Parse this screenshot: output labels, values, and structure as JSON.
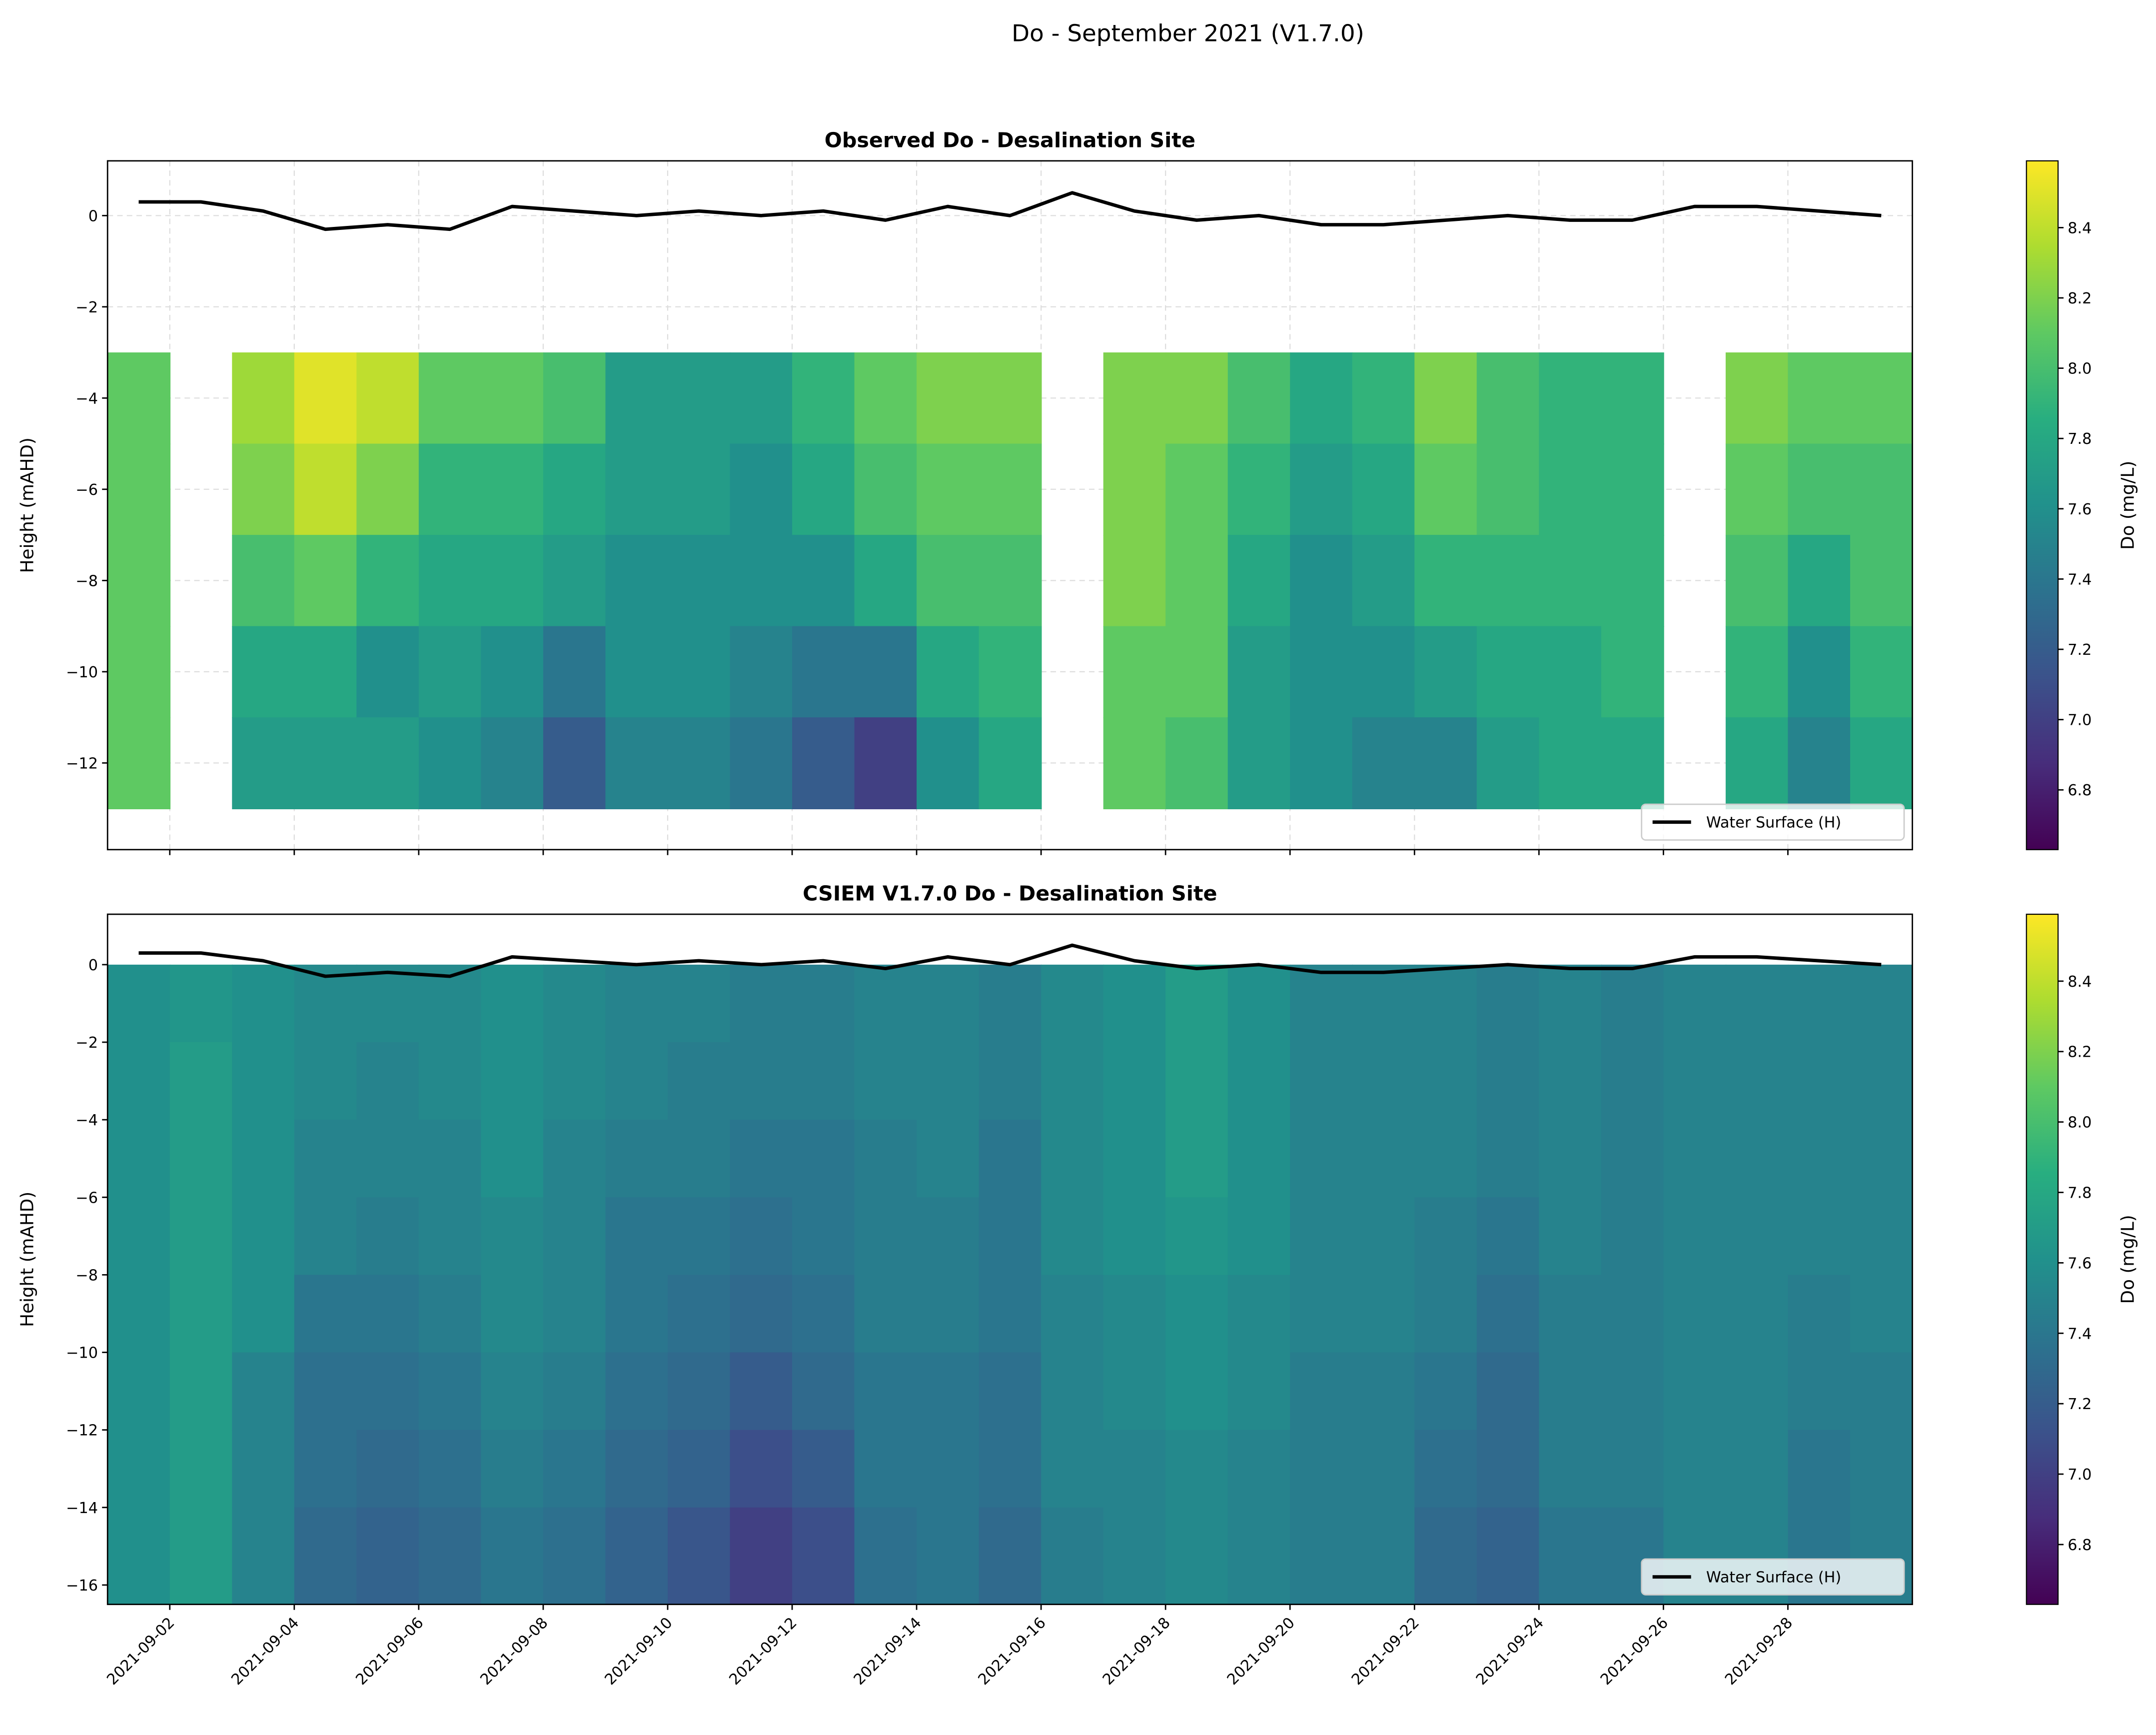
{
  "title": "Do - September 2021 (V1.7.0)",
  "chart_data": [
    {
      "type": "heatmap",
      "title": "Observed Do - Desalination Site",
      "ylabel": "Height (mAHD)",
      "grid": true,
      "legend": "lower right",
      "xlim": [
        "2021-09-01",
        "2021-09-30"
      ],
      "xticks": [
        "2021-09-02",
        "2021-09-04",
        "2021-09-06",
        "2021-09-08",
        "2021-09-10",
        "2021-09-12",
        "2021-09-14",
        "2021-09-16",
        "2021-09-18",
        "2021-09-20",
        "2021-09-22",
        "2021-09-24",
        "2021-09-26",
        "2021-09-28"
      ],
      "ylim": [
        -13.9,
        1.2
      ],
      "yticks": [
        {
          "value": -12,
          "label": "−12"
        },
        {
          "value": -10,
          "label": "−10"
        },
        {
          "value": -8,
          "label": "−8"
        },
        {
          "value": -6,
          "label": "−6"
        },
        {
          "value": -4,
          "label": "−4"
        },
        {
          "value": -2,
          "label": "−2"
        },
        0
      ],
      "x": [
        "2021-09-01",
        "2021-09-02",
        "2021-09-03",
        "2021-09-04",
        "2021-09-05",
        "2021-09-06",
        "2021-09-07",
        "2021-09-08",
        "2021-09-09",
        "2021-09-10",
        "2021-09-11",
        "2021-09-12",
        "2021-09-13",
        "2021-09-14",
        "2021-09-15",
        "2021-09-16",
        "2021-09-17",
        "2021-09-18",
        "2021-09-19",
        "2021-09-20",
        "2021-09-21",
        "2021-09-22",
        "2021-09-23",
        "2021-09-24",
        "2021-09-25",
        "2021-09-26",
        "2021-09-27",
        "2021-09-28",
        "2021-09-29"
      ],
      "depth_bins": [
        -3,
        -5,
        -7,
        -9,
        -11,
        -13
      ],
      "values": [
        [
          8.1,
          8.1,
          8.1,
          8.1,
          8.1
        ],
        null,
        [
          8.3,
          8.2,
          8.0,
          7.8,
          7.7
        ],
        [
          8.5,
          8.4,
          8.1,
          7.8,
          7.7
        ],
        [
          8.4,
          8.2,
          7.9,
          7.6,
          7.7
        ],
        [
          8.1,
          7.9,
          7.8,
          7.7,
          7.6
        ],
        [
          8.1,
          7.9,
          7.8,
          7.6,
          7.5
        ],
        [
          8.0,
          7.8,
          7.7,
          7.4,
          7.2
        ],
        [
          7.7,
          7.7,
          7.6,
          7.6,
          7.5
        ],
        [
          7.7,
          7.7,
          7.6,
          7.6,
          7.5
        ],
        [
          7.7,
          7.6,
          7.6,
          7.5,
          7.4
        ],
        [
          7.9,
          7.8,
          7.6,
          7.4,
          7.2
        ],
        [
          8.1,
          8.0,
          7.8,
          7.4,
          7.0
        ],
        [
          8.2,
          8.1,
          8.0,
          7.8,
          7.6
        ],
        [
          8.2,
          8.1,
          8.0,
          7.9,
          7.8
        ],
        null,
        [
          8.2,
          8.2,
          8.2,
          8.1,
          8.1
        ],
        [
          8.2,
          8.1,
          8.1,
          8.1,
          8.0
        ],
        [
          8.0,
          7.9,
          7.8,
          7.7,
          7.7
        ],
        [
          7.8,
          7.7,
          7.6,
          7.6,
          7.6
        ],
        [
          7.9,
          7.8,
          7.7,
          7.6,
          7.5
        ],
        [
          8.2,
          8.1,
          7.9,
          7.7,
          7.5
        ],
        [
          8.0,
          8.0,
          7.9,
          7.8,
          7.7
        ],
        [
          7.9,
          7.9,
          7.9,
          7.8,
          7.8
        ],
        [
          7.9,
          7.9,
          7.9,
          7.9,
          7.8
        ],
        null,
        [
          8.2,
          8.1,
          8.0,
          7.9,
          7.8
        ],
        [
          8.1,
          8.0,
          7.8,
          7.6,
          7.5
        ],
        [
          8.1,
          8.0,
          8.0,
          7.9,
          7.8
        ]
      ],
      "line": {
        "name": "Water Surface (H)",
        "color": "#000000",
        "values": [
          0.3,
          0.3,
          0.1,
          -0.3,
          -0.2,
          -0.3,
          0.2,
          0.1,
          0.0,
          0.1,
          0.0,
          0.1,
          -0.1,
          0.2,
          0.0,
          0.5,
          0.1,
          -0.1,
          0.0,
          -0.2,
          -0.2,
          -0.1,
          0.0,
          -0.1,
          -0.1,
          0.2,
          0.2,
          0.1,
          0.0
        ]
      },
      "colorbar": {
        "label": "Do (mg/L)",
        "colormap": "viridis",
        "lim": [
          6.63,
          8.59
        ],
        "ticks": [
          6.8,
          {
            "value": 7,
            "label": "7.0"
          },
          7.2,
          7.4,
          7.6,
          7.8,
          {
            "value": 8,
            "label": "8.0"
          },
          8.2,
          8.4
        ]
      }
    },
    {
      "type": "heatmap",
      "title": "CSIEM V1.7.0 Do - Desalination Site",
      "ylabel": "Height (mAHD)",
      "grid": false,
      "legend": "lower right",
      "xlim": [
        "2021-09-01",
        "2021-09-30"
      ],
      "xticks": [
        "2021-09-02",
        "2021-09-04",
        "2021-09-06",
        "2021-09-08",
        "2021-09-10",
        "2021-09-12",
        "2021-09-14",
        "2021-09-16",
        "2021-09-18",
        "2021-09-20",
        "2021-09-22",
        "2021-09-24",
        "2021-09-26",
        "2021-09-28"
      ],
      "ylim": [
        -16.5,
        1.3
      ],
      "yticks": [
        {
          "value": -16,
          "label": "−16"
        },
        {
          "value": -14,
          "label": "−14"
        },
        {
          "value": -12,
          "label": "−12"
        },
        {
          "value": -10,
          "label": "−10"
        },
        {
          "value": -8,
          "label": "−8"
        },
        {
          "value": -6,
          "label": "−6"
        },
        {
          "value": -4,
          "label": "−4"
        },
        {
          "value": -2,
          "label": "−2"
        },
        0
      ],
      "x": [
        "2021-09-01",
        "2021-09-02",
        "2021-09-03",
        "2021-09-04",
        "2021-09-05",
        "2021-09-06",
        "2021-09-07",
        "2021-09-08",
        "2021-09-09",
        "2021-09-10",
        "2021-09-11",
        "2021-09-12",
        "2021-09-13",
        "2021-09-14",
        "2021-09-15",
        "2021-09-16",
        "2021-09-17",
        "2021-09-18",
        "2021-09-19",
        "2021-09-20",
        "2021-09-21",
        "2021-09-22",
        "2021-09-23",
        "2021-09-24",
        "2021-09-25",
        "2021-09-26",
        "2021-09-27",
        "2021-09-28",
        "2021-09-29"
      ],
      "depth_bins": [
        0,
        -2,
        -4,
        -6,
        -8,
        -10,
        -12,
        -14,
        -16.5
      ],
      "values": [
        [
          7.6,
          7.6,
          7.6,
          7.6,
          7.6,
          7.6,
          7.6,
          7.6
        ],
        [
          7.65,
          7.7,
          7.7,
          7.7,
          7.7,
          7.7,
          7.7,
          7.7
        ],
        [
          7.6,
          7.6,
          7.6,
          7.6,
          7.6,
          7.5,
          7.5,
          7.5
        ],
        [
          7.55,
          7.55,
          7.5,
          7.5,
          7.4,
          7.35,
          7.35,
          7.3
        ],
        [
          7.55,
          7.5,
          7.5,
          7.45,
          7.4,
          7.35,
          7.3,
          7.25
        ],
        [
          7.55,
          7.55,
          7.5,
          7.5,
          7.45,
          7.4,
          7.35,
          7.3
        ],
        [
          7.6,
          7.6,
          7.6,
          7.55,
          7.55,
          7.5,
          7.45,
          7.4
        ],
        [
          7.55,
          7.55,
          7.5,
          7.5,
          7.5,
          7.45,
          7.4,
          7.35
        ],
        [
          7.5,
          7.5,
          7.45,
          7.4,
          7.4,
          7.35,
          7.3,
          7.25
        ],
        [
          7.5,
          7.45,
          7.45,
          7.4,
          7.35,
          7.3,
          7.25,
          7.15
        ],
        [
          7.45,
          7.45,
          7.4,
          7.35,
          7.3,
          7.2,
          7.1,
          7.0
        ],
        [
          7.45,
          7.45,
          7.4,
          7.4,
          7.35,
          7.3,
          7.2,
          7.1
        ],
        [
          7.5,
          7.5,
          7.45,
          7.45,
          7.45,
          7.4,
          7.4,
          7.35
        ],
        [
          7.5,
          7.5,
          7.5,
          7.45,
          7.45,
          7.4,
          7.4,
          7.4
        ],
        [
          7.45,
          7.45,
          7.4,
          7.4,
          7.4,
          7.35,
          7.35,
          7.3
        ],
        [
          7.55,
          7.55,
          7.55,
          7.55,
          7.5,
          7.5,
          7.5,
          7.45
        ],
        [
          7.6,
          7.6,
          7.6,
          7.6,
          7.55,
          7.55,
          7.5,
          7.5
        ],
        [
          7.7,
          7.7,
          7.7,
          7.65,
          7.6,
          7.6,
          7.55,
          7.55
        ],
        [
          7.6,
          7.6,
          7.6,
          7.6,
          7.55,
          7.55,
          7.5,
          7.5
        ],
        [
          7.5,
          7.5,
          7.5,
          7.5,
          7.5,
          7.45,
          7.45,
          7.45
        ],
        [
          7.5,
          7.5,
          7.5,
          7.5,
          7.5,
          7.45,
          7.45,
          7.45
        ],
        [
          7.5,
          7.5,
          7.5,
          7.45,
          7.45,
          7.4,
          7.35,
          7.3
        ],
        [
          7.45,
          7.45,
          7.45,
          7.4,
          7.35,
          7.3,
          7.3,
          7.25
        ],
        [
          7.5,
          7.5,
          7.5,
          7.5,
          7.45,
          7.45,
          7.45,
          7.4
        ],
        [
          7.45,
          7.45,
          7.45,
          7.45,
          7.45,
          7.45,
          7.45,
          7.4
        ],
        [
          7.5,
          7.5,
          7.5,
          7.5,
          7.5,
          7.5,
          7.5,
          7.5
        ],
        [
          7.5,
          7.5,
          7.5,
          7.5,
          7.5,
          7.5,
          7.5,
          7.5
        ],
        [
          7.5,
          7.5,
          7.5,
          7.5,
          7.45,
          7.45,
          7.4,
          7.4
        ],
        [
          7.5,
          7.5,
          7.5,
          7.5,
          7.5,
          7.45,
          7.45,
          7.45
        ]
      ],
      "line": {
        "name": "Water Surface (H)",
        "color": "#000000",
        "values": [
          0.3,
          0.3,
          0.1,
          -0.3,
          -0.2,
          -0.3,
          0.2,
          0.1,
          0.0,
          0.1,
          0.0,
          0.1,
          -0.1,
          0.2,
          0.0,
          0.5,
          0.1,
          -0.1,
          0.0,
          -0.2,
          -0.2,
          -0.1,
          0.0,
          -0.1,
          -0.1,
          0.2,
          0.2,
          0.1,
          0.0
        ]
      },
      "colorbar": {
        "label": "Do (mg/L)",
        "colormap": "viridis",
        "lim": [
          6.63,
          8.59
        ],
        "ticks": [
          6.8,
          {
            "value": 7,
            "label": "7.0"
          },
          7.2,
          7.4,
          7.6,
          7.8,
          {
            "value": 8,
            "label": "8.0"
          },
          8.2,
          8.4
        ]
      }
    }
  ]
}
